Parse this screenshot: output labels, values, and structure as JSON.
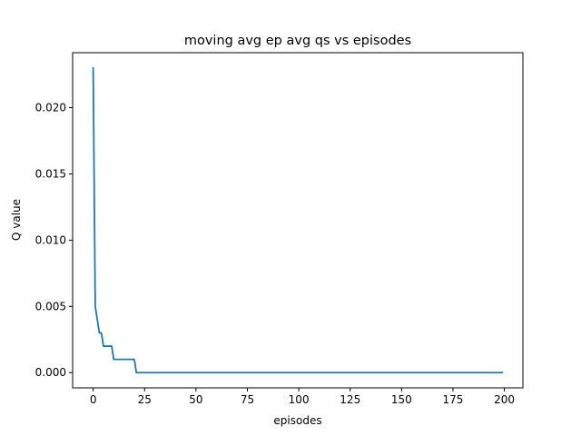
{
  "chart_data": {
    "type": "line",
    "title": "moving avg ep avg qs vs episodes",
    "xlabel": "episodes",
    "ylabel": "Q value",
    "xlim": [
      -10,
      209
    ],
    "ylim": [
      -0.00115,
      0.02415
    ],
    "xticks": [
      0,
      25,
      50,
      75,
      100,
      125,
      150,
      175,
      200
    ],
    "yticks": [
      0.0,
      0.005,
      0.01,
      0.015,
      0.02
    ],
    "ytick_labels": [
      "0.000",
      "0.005",
      "0.010",
      "0.015",
      "0.020"
    ],
    "grid": false,
    "series": [
      {
        "color": "#1f77b4",
        "points": [
          [
            0,
            0.023
          ],
          [
            1,
            0.005
          ],
          [
            2,
            0.004
          ],
          [
            3,
            0.003
          ],
          [
            4,
            0.003
          ],
          [
            5,
            0.002
          ],
          [
            9,
            0.002
          ],
          [
            10,
            0.001
          ],
          [
            20,
            0.001
          ],
          [
            21,
            0.0
          ],
          [
            199,
            0.0
          ]
        ]
      }
    ]
  }
}
